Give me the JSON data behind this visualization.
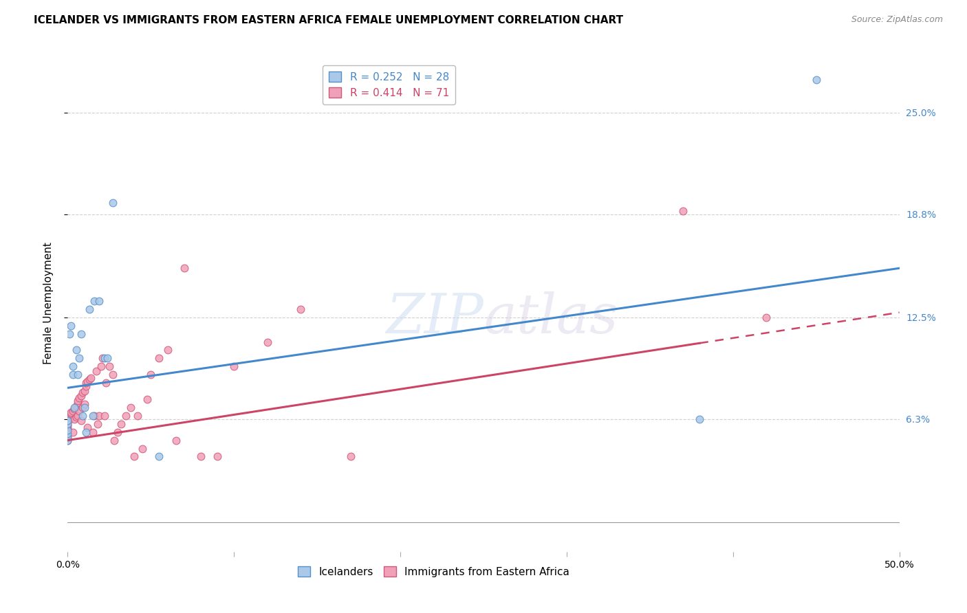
{
  "title": "ICELANDER VS IMMIGRANTS FROM EASTERN AFRICA FEMALE UNEMPLOYMENT CORRELATION CHART",
  "source": "Source: ZipAtlas.com",
  "ylabel": "Female Unemployment",
  "xlim": [
    0.0,
    0.5
  ],
  "ylim": [
    -0.018,
    0.285
  ],
  "yticks": [
    0.063,
    0.125,
    0.188,
    0.25
  ],
  "ytick_labels": [
    "6.3%",
    "12.5%",
    "18.8%",
    "25.0%"
  ],
  "xticks": [
    0.0,
    0.1,
    0.2,
    0.3,
    0.4,
    0.5
  ],
  "xtick_labels": [
    "0.0%",
    "",
    "",
    "",
    "",
    "50.0%"
  ],
  "legend_r1": "R = 0.252",
  "legend_n1": "N = 28",
  "legend_r2": "R = 0.414",
  "legend_n2": "N = 71",
  "blue_scatter_face": "#aac8e8",
  "blue_scatter_edge": "#5590c8",
  "pink_scatter_face": "#f0a0b8",
  "pink_scatter_edge": "#d05878",
  "blue_line_color": "#4488cc",
  "pink_line_color": "#cc4466",
  "background_color": "#ffffff",
  "grid_color": "#d0d0d0",
  "title_fontsize": 11,
  "axis_label_fontsize": 11,
  "tick_fontsize": 10,
  "marker_size": 60,
  "blue_line_start_y": 0.082,
  "blue_line_end_y": 0.155,
  "pink_line_start_y": 0.05,
  "pink_line_end_y": 0.128,
  "pink_line_solid_end_x": 0.38,
  "icelanders_x": [
    0.0,
    0.0,
    0.0,
    0.0,
    0.0,
    0.0,
    0.001,
    0.002,
    0.003,
    0.003,
    0.004,
    0.005,
    0.006,
    0.007,
    0.008,
    0.009,
    0.01,
    0.011,
    0.013,
    0.015,
    0.016,
    0.019,
    0.022,
    0.024,
    0.027,
    0.055,
    0.38,
    0.45
  ],
  "icelanders_y": [
    0.05,
    0.052,
    0.054,
    0.056,
    0.06,
    0.062,
    0.115,
    0.12,
    0.09,
    0.095,
    0.07,
    0.105,
    0.09,
    0.1,
    0.115,
    0.065,
    0.07,
    0.055,
    0.13,
    0.065,
    0.135,
    0.135,
    0.1,
    0.1,
    0.195,
    0.04,
    0.063,
    0.27
  ],
  "immigrants_x": [
    0.0,
    0.0,
    0.0,
    0.0,
    0.0,
    0.0,
    0.0,
    0.0,
    0.0,
    0.0,
    0.001,
    0.001,
    0.001,
    0.002,
    0.002,
    0.003,
    0.003,
    0.004,
    0.004,
    0.005,
    0.005,
    0.006,
    0.006,
    0.006,
    0.007,
    0.007,
    0.008,
    0.008,
    0.009,
    0.009,
    0.01,
    0.01,
    0.011,
    0.011,
    0.012,
    0.012,
    0.013,
    0.014,
    0.015,
    0.016,
    0.017,
    0.018,
    0.019,
    0.02,
    0.021,
    0.022,
    0.023,
    0.025,
    0.027,
    0.028,
    0.03,
    0.032,
    0.035,
    0.038,
    0.04,
    0.042,
    0.045,
    0.048,
    0.05,
    0.055,
    0.06,
    0.065,
    0.07,
    0.08,
    0.09,
    0.1,
    0.12,
    0.14,
    0.17,
    0.37,
    0.42
  ],
  "immigrants_y": [
    0.05,
    0.052,
    0.054,
    0.056,
    0.057,
    0.058,
    0.059,
    0.06,
    0.062,
    0.063,
    0.063,
    0.064,
    0.065,
    0.066,
    0.067,
    0.068,
    0.055,
    0.069,
    0.063,
    0.071,
    0.064,
    0.073,
    0.065,
    0.074,
    0.076,
    0.068,
    0.077,
    0.062,
    0.079,
    0.07,
    0.08,
    0.072,
    0.083,
    0.085,
    0.086,
    0.058,
    0.087,
    0.088,
    0.055,
    0.065,
    0.092,
    0.06,
    0.065,
    0.095,
    0.1,
    0.065,
    0.085,
    0.095,
    0.09,
    0.05,
    0.055,
    0.06,
    0.065,
    0.07,
    0.04,
    0.065,
    0.045,
    0.075,
    0.09,
    0.1,
    0.105,
    0.05,
    0.155,
    0.04,
    0.04,
    0.095,
    0.11,
    0.13,
    0.04,
    0.19,
    0.125
  ]
}
